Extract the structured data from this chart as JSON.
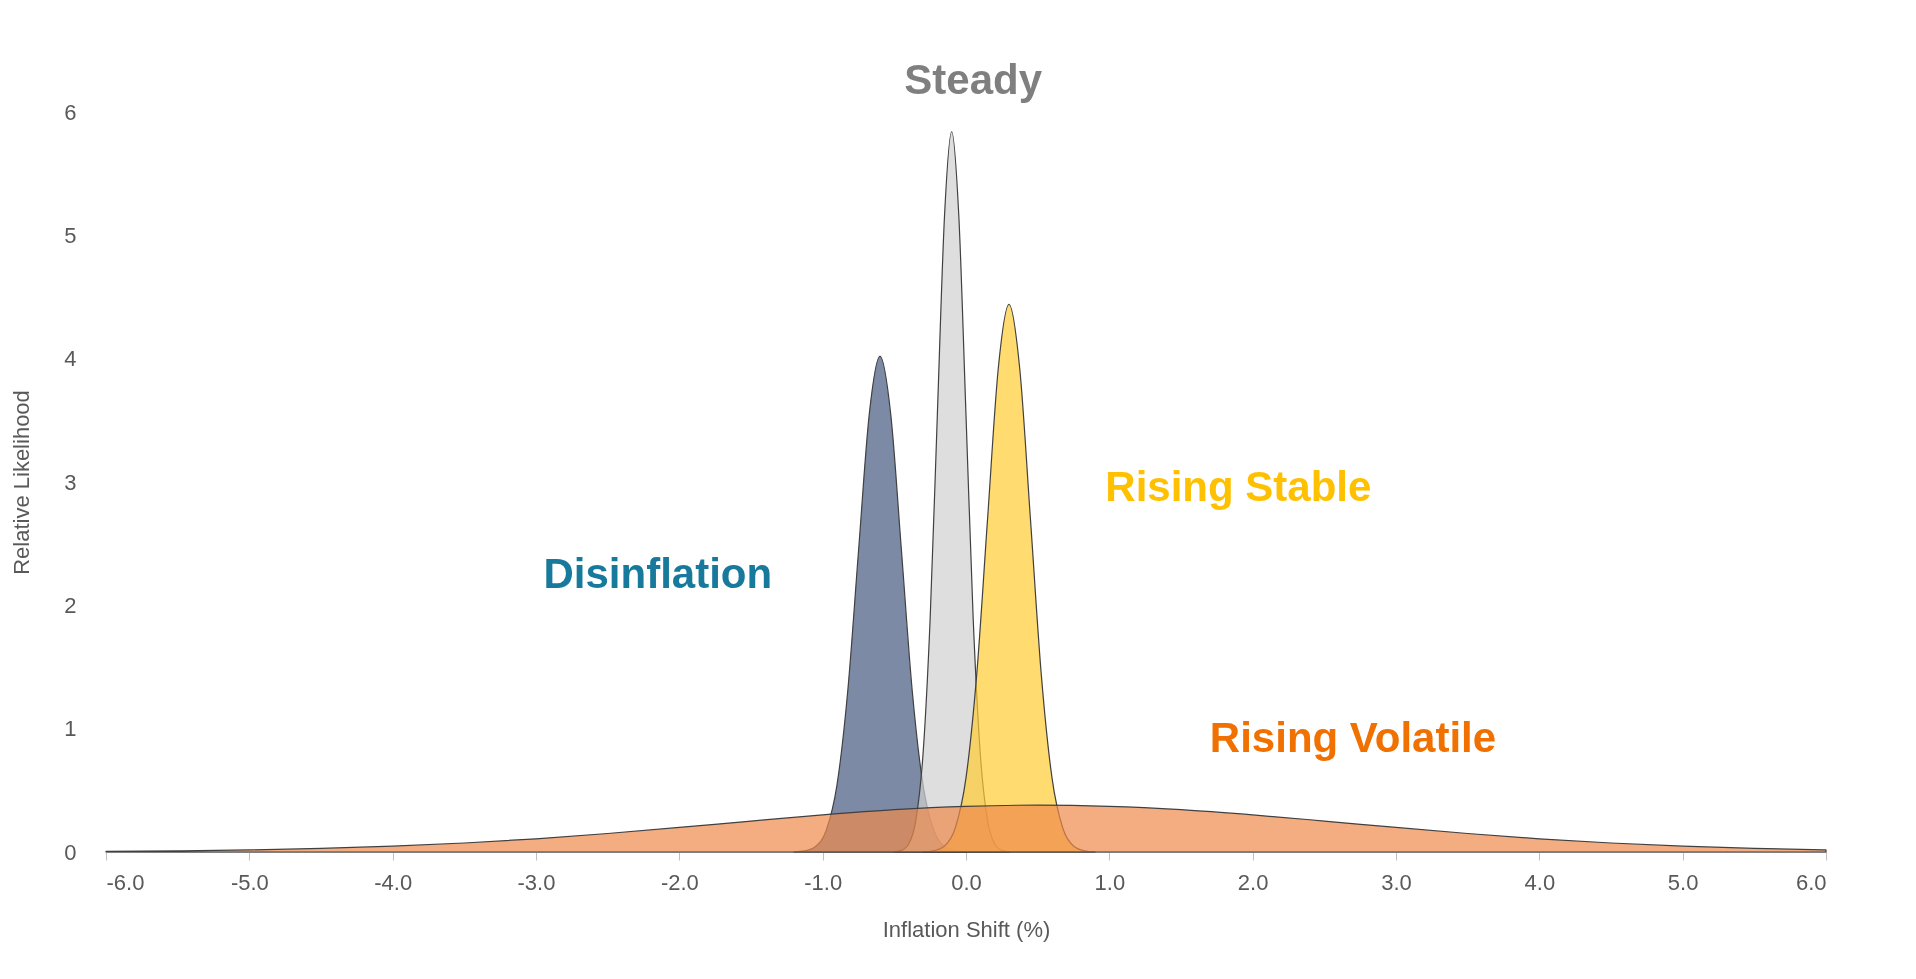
{
  "chart_data": {
    "type": "area",
    "xlabel": "Inflation Shift (%)",
    "ylabel": "Relative Likelihood",
    "xlim": [
      -6,
      6
    ],
    "xticks": [
      {
        "value": -6,
        "label": "-6.0"
      },
      {
        "value": -5,
        "label": "-5.0"
      },
      {
        "value": -4,
        "label": "-4.0"
      },
      {
        "value": -3,
        "label": "-3.0"
      },
      {
        "value": -2,
        "label": "-2.0"
      },
      {
        "value": -1,
        "label": "-1.0"
      },
      {
        "value": 0,
        "label": "0.0"
      },
      {
        "value": 1,
        "label": "1.0"
      },
      {
        "value": 2,
        "label": "2.0"
      },
      {
        "value": 3,
        "label": "3.0"
      },
      {
        "value": 4,
        "label": "4.0"
      },
      {
        "value": 5,
        "label": "5.0"
      },
      {
        "value": 6,
        "label": "6.0"
      }
    ],
    "ylim": [
      0,
      6
    ],
    "yticks": [
      0,
      1,
      2,
      3,
      4,
      5,
      6
    ],
    "grid": false,
    "legend": false,
    "series": [
      {
        "name": "Disinflation",
        "color": "#44587f",
        "x": [
          -1.2,
          -1.125,
          -1.05,
          -0.975,
          -0.9,
          -0.825,
          -0.75,
          -0.675,
          -0.6,
          -0.525,
          -0.45,
          -0.375,
          -0.3,
          -0.225,
          -0.15,
          -0.075,
          0.0
        ],
        "values": [
          0.001,
          0.009,
          0.045,
          0.176,
          0.544,
          1.305,
          2.438,
          3.548,
          4.02,
          3.548,
          2.438,
          1.305,
          0.544,
          0.176,
          0.045,
          0.009,
          0.001
        ]
      },
      {
        "name": "Steady",
        "color": "#d0d0d0",
        "x": [
          -0.5,
          -0.45,
          -0.4,
          -0.35,
          -0.3,
          -0.25,
          -0.2,
          -0.15,
          -0.1,
          -0.05,
          0.0,
          0.05,
          0.1,
          0.15,
          0.2,
          0.25,
          0.3
        ],
        "values": [
          0.002,
          0.013,
          0.065,
          0.256,
          0.79,
          1.896,
          3.542,
          5.154,
          5.84,
          5.154,
          3.542,
          1.896,
          0.79,
          0.256,
          0.065,
          0.013,
          0.002
        ]
      },
      {
        "name": "Rising Stable",
        "color": "#ffcc33",
        "x": [
          -0.3,
          -0.225,
          -0.15,
          -0.075,
          0.0,
          0.075,
          0.15,
          0.225,
          0.3,
          0.375,
          0.45,
          0.525,
          0.6,
          0.675,
          0.75,
          0.825,
          0.9
        ],
        "values": [
          0.001,
          0.01,
          0.049,
          0.195,
          0.601,
          1.442,
          2.693,
          3.918,
          4.44,
          3.918,
          2.693,
          1.442,
          0.601,
          0.195,
          0.049,
          0.01,
          0.001
        ]
      },
      {
        "name": "Rising Volatile",
        "color": "#f08a4b",
        "x": [
          -6,
          -5.5,
          -5,
          -4.5,
          -4,
          -3.5,
          -3,
          -2.5,
          -2,
          -1.5,
          -1,
          -0.5,
          0,
          0.5,
          1,
          1.5,
          2,
          2.5,
          3,
          3.5,
          4,
          4.5,
          5,
          5.5,
          6
        ],
        "values": [
          0.005,
          0.009,
          0.017,
          0.029,
          0.047,
          0.073,
          0.107,
          0.15,
          0.199,
          0.251,
          0.301,
          0.343,
          0.37,
          0.38,
          0.37,
          0.343,
          0.301,
          0.251,
          0.199,
          0.15,
          0.107,
          0.073,
          0.047,
          0.029,
          0.017
        ]
      }
    ]
  }
}
